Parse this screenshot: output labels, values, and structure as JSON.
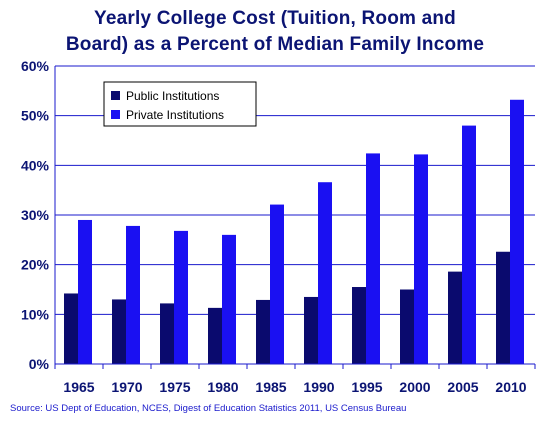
{
  "title": {
    "line1": "Yearly College Cost (Tuition, Room and",
    "line2": "Board) as a Percent of Median Family Income"
  },
  "source": "Source: US Dept of Education, NCES, Digest of Education Statistics 2011, US Census Bureau",
  "colors": {
    "public": "#0a0a6e",
    "private": "#1a10f2",
    "axis": "#1a1acc",
    "tick_text": "#0b1473",
    "title": "#0b1473"
  },
  "chart_data": {
    "type": "bar",
    "title": "Yearly College Cost (Tuition, Room and Board) as a Percent of Median Family Income",
    "categories": [
      "1965",
      "1970",
      "1975",
      "1980",
      "1985",
      "1990",
      "1995",
      "2000",
      "2005",
      "2010"
    ],
    "series": [
      {
        "name": "Public Institutions",
        "values": [
          14.2,
          13.0,
          12.2,
          11.3,
          12.9,
          13.5,
          15.5,
          15.0,
          18.6,
          22.6
        ]
      },
      {
        "name": "Private Institutions",
        "values": [
          29.0,
          27.8,
          26.8,
          26.0,
          32.1,
          36.6,
          42.4,
          42.2,
          48.0,
          53.2
        ]
      }
    ],
    "y_ticks": [
      "0%",
      "10%",
      "20%",
      "30%",
      "40%",
      "50%",
      "60%"
    ],
    "ylim": [
      0,
      60
    ],
    "grid": true,
    "legend_placement": "top-left"
  }
}
